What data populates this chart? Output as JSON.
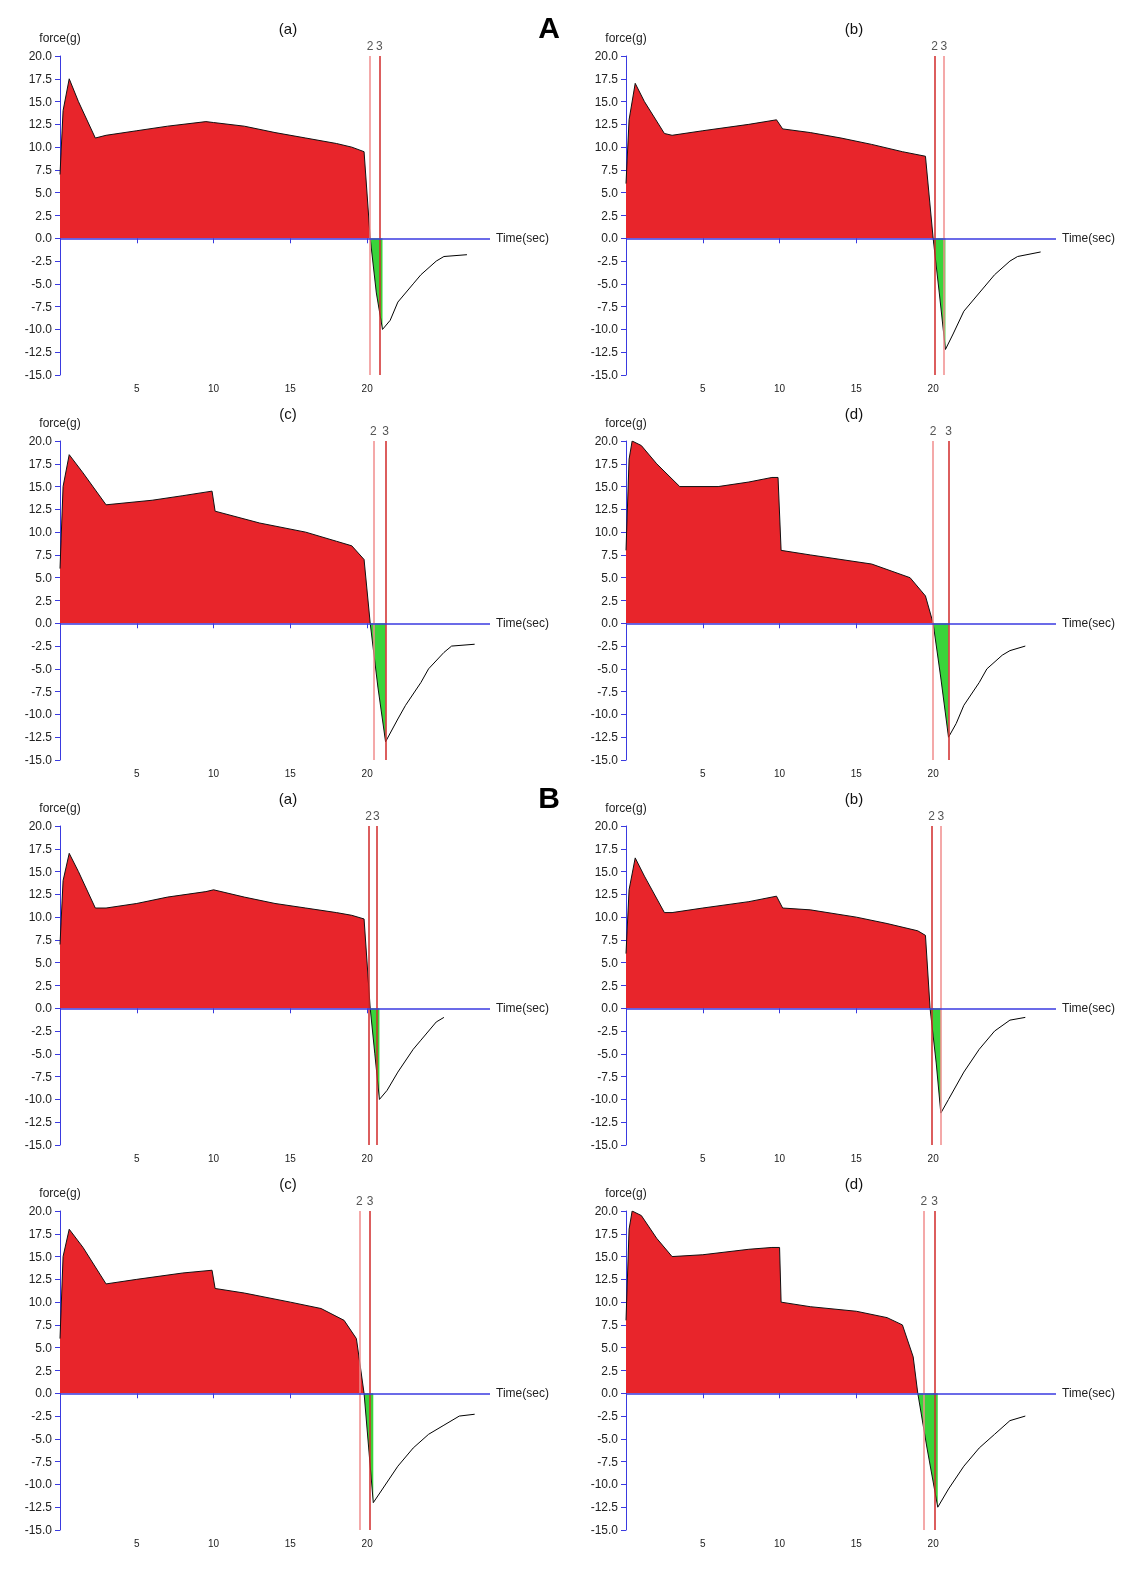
{
  "chart_data": [
    {
      "type": "area",
      "title": "(a)",
      "ylabel": "force(g)",
      "xlabel": "Time(sec)",
      "annotations": [
        "A",
        {
          "text": "2",
          "x": 20.2,
          "y": 20
        },
        {
          "text": "3",
          "x": 20.8,
          "y": 20
        }
      ],
      "xlim": [
        0,
        28
      ],
      "xticks": [
        5,
        10,
        15,
        20
      ],
      "ylim": [
        -15,
        20
      ],
      "yticks": [
        {
          "value": 20,
          "label": "20.0"
        },
        17.5,
        {
          "value": 15,
          "label": "15.0"
        },
        12.5,
        {
          "value": 10,
          "label": "10.0"
        },
        7.5,
        {
          "value": 5,
          "label": "5.0"
        },
        2.5,
        {
          "value": 0,
          "label": "0.0"
        },
        -2.5,
        {
          "value": -5,
          "label": "-5.0"
        },
        -7.5,
        {
          "value": -10,
          "label": "-10.0"
        },
        -12.5,
        {
          "value": -15,
          "label": "-15.0"
        }
      ],
      "ref_lines": [
        {
          "axis": "x",
          "value": 20.2,
          "color": "#f08c8c"
        },
        {
          "axis": "x",
          "value": 20.8,
          "color": "#d02828"
        },
        {
          "axis": "y",
          "value": 0,
          "color": "#3a3ae0"
        }
      ],
      "series": [
        {
          "type": "area",
          "color": "#e8252b",
          "x": [
            0,
            0.2,
            0.6,
            1.2,
            2.3,
            3,
            5,
            7,
            9.5,
            10,
            12,
            14,
            16,
            18,
            19,
            19.8,
            20.2
          ],
          "values": [
            7,
            14,
            17.5,
            15,
            11,
            11.3,
            11.8,
            12.3,
            12.8,
            12.7,
            12.3,
            11.6,
            11,
            10.4,
            10,
            9.5,
            0
          ]
        },
        {
          "type": "area",
          "color": "#39d43a",
          "x": [
            20.2,
            20.6,
            21
          ],
          "values": [
            0,
            -6,
            -10
          ]
        },
        {
          "type": "line",
          "color": "#000000",
          "x": [
            21,
            21.5,
            22,
            23,
            23.5,
            24.5,
            25,
            26.5
          ],
          "values": [
            -10,
            -9,
            -7,
            -5,
            -4,
            -2.5,
            -2,
            -1.8
          ]
        }
      ]
    },
    {
      "type": "area",
      "title": "(b)",
      "ylabel": "force(g)",
      "xlabel": "Time(sec)",
      "annotations": [
        {
          "text": "2",
          "x": 20.1,
          "y": 20
        },
        {
          "text": "3",
          "x": 20.7,
          "y": 20
        }
      ],
      "xlim": [
        0,
        28
      ],
      "xticks": [
        5,
        10,
        15,
        20
      ],
      "ylim": [
        -15,
        20
      ],
      "yticks": [
        {
          "value": 20,
          "label": "20.0"
        },
        17.5,
        {
          "value": 15,
          "label": "15.0"
        },
        12.5,
        {
          "value": 10,
          "label": "10.0"
        },
        7.5,
        {
          "value": 5,
          "label": "5.0"
        },
        2.5,
        {
          "value": 0,
          "label": "0.0"
        },
        -2.5,
        {
          "value": -5,
          "label": "-5.0"
        },
        -7.5,
        {
          "value": -10,
          "label": "-10.0"
        },
        -12.5,
        {
          "value": -15,
          "label": "-15.0"
        }
      ],
      "ref_lines": [
        {
          "axis": "x",
          "value": 20.1,
          "color": "#d02828"
        },
        {
          "axis": "x",
          "value": 20.7,
          "color": "#f08c8c"
        },
        {
          "axis": "y",
          "value": 0,
          "color": "#3a3ae0"
        }
      ],
      "series": [
        {
          "type": "area",
          "color": "#e8252b",
          "x": [
            0,
            0.2,
            0.6,
            1.2,
            2.5,
            3,
            5,
            8,
            9.8,
            10.2,
            12,
            14,
            16,
            18,
            19.5,
            20
          ],
          "values": [
            6,
            13,
            17,
            15,
            11.5,
            11.3,
            11.8,
            12.5,
            13,
            12,
            11.6,
            11,
            10.3,
            9.5,
            9,
            0
          ]
        },
        {
          "type": "area",
          "color": "#39d43a",
          "x": [
            20,
            20.4,
            20.8
          ],
          "values": [
            0,
            -6,
            -12.2
          ]
        },
        {
          "type": "line",
          "color": "#000000",
          "x": [
            20.8,
            21.3,
            22,
            23,
            24,
            25,
            25.5,
            27
          ],
          "values": [
            -12.2,
            -10.5,
            -8,
            -6,
            -4,
            -2.5,
            -2,
            -1.5
          ]
        }
      ]
    },
    {
      "type": "area",
      "title": "(c)",
      "ylabel": "force(g)",
      "xlabel": "Time(sec)",
      "annotations": [
        {
          "text": "2",
          "x": 20.4,
          "y": 20
        },
        {
          "text": "3",
          "x": 21.2,
          "y": 20
        }
      ],
      "xlim": [
        0,
        28
      ],
      "xticks": [
        5,
        10,
        15,
        20
      ],
      "ylim": [
        -15,
        20
      ],
      "yticks": [
        {
          "value": 20,
          "label": "20.0"
        },
        17.5,
        {
          "value": 15,
          "label": "15.0"
        },
        12.5,
        {
          "value": 10,
          "label": "10.0"
        },
        7.5,
        {
          "value": 5,
          "label": "5.0"
        },
        2.5,
        {
          "value": 0,
          "label": "0.0"
        },
        -2.5,
        {
          "value": -5,
          "label": "-5.0"
        },
        -7.5,
        {
          "value": -10,
          "label": "-10.0"
        },
        -12.5,
        {
          "value": -15,
          "label": "-15.0"
        }
      ],
      "ref_lines": [
        {
          "axis": "x",
          "value": 20.4,
          "color": "#f08c8c"
        },
        {
          "axis": "x",
          "value": 21.2,
          "color": "#d02828"
        },
        {
          "axis": "y",
          "value": 0,
          "color": "#3a3ae0"
        }
      ],
      "series": [
        {
          "type": "area",
          "color": "#e8252b",
          "x": [
            0,
            0.2,
            0.6,
            1.5,
            3,
            6,
            8,
            9.9,
            10.1,
            13,
            16,
            18,
            19,
            19.8,
            20.2
          ],
          "values": [
            6,
            15,
            18.5,
            16.5,
            13,
            13.5,
            14,
            14.5,
            12.3,
            11,
            10,
            9,
            8.5,
            7,
            0
          ]
        },
        {
          "type": "area",
          "color": "#39d43a",
          "x": [
            20.2,
            20.7,
            21.2
          ],
          "values": [
            0,
            -7,
            -13
          ]
        },
        {
          "type": "line",
          "color": "#000000",
          "x": [
            21.2,
            22,
            22.5,
            23.5,
            24,
            25,
            25.5,
            27
          ],
          "values": [
            -13,
            -10.5,
            -9,
            -6.5,
            -5,
            -3.2,
            -2.5,
            -2.3
          ]
        }
      ]
    },
    {
      "type": "area",
      "title": "(d)",
      "ylabel": "force(g)",
      "xlabel": "Time(sec)",
      "annotations": [
        {
          "text": "2",
          "x": 20,
          "y": 20
        },
        {
          "text": "3",
          "x": 21,
          "y": 20
        }
      ],
      "xlim": [
        0,
        28
      ],
      "xticks": [
        5,
        10,
        15,
        20
      ],
      "ylim": [
        -15,
        20
      ],
      "yticks": [
        {
          "value": 20,
          "label": "20.0"
        },
        17.5,
        {
          "value": 15,
          "label": "15.0"
        },
        12.5,
        {
          "value": 10,
          "label": "10.0"
        },
        7.5,
        {
          "value": 5,
          "label": "5.0"
        },
        2.5,
        {
          "value": 0,
          "label": "0.0"
        },
        -2.5,
        {
          "value": -5,
          "label": "-5.0"
        },
        -7.5,
        {
          "value": -10,
          "label": "-10.0"
        },
        -12.5,
        {
          "value": -15,
          "label": "-15.0"
        }
      ],
      "ref_lines": [
        {
          "axis": "x",
          "value": 20,
          "color": "#f08c8c"
        },
        {
          "axis": "x",
          "value": 21,
          "color": "#d02828"
        },
        {
          "axis": "y",
          "value": 0,
          "color": "#3a3ae0"
        }
      ],
      "series": [
        {
          "type": "area",
          "color": "#e8252b",
          "x": [
            0,
            0.2,
            0.4,
            1,
            2,
            3.5,
            6,
            8,
            9.5,
            9.9,
            10.1,
            12,
            14,
            16,
            18.5,
            19.5,
            20
          ],
          "values": [
            8,
            18,
            20,
            19.5,
            17.5,
            15,
            15,
            15.5,
            16,
            16,
            8,
            7.5,
            7,
            6.5,
            5,
            3,
            0
          ]
        },
        {
          "type": "area",
          "color": "#39d43a",
          "x": [
            20,
            20.5,
            21
          ],
          "values": [
            0,
            -6,
            -12.5
          ]
        },
        {
          "type": "line",
          "color": "#000000",
          "x": [
            21,
            21.5,
            22,
            23,
            23.5,
            24.5,
            25,
            26
          ],
          "values": [
            -12.5,
            -11,
            -9,
            -6.5,
            -5,
            -3.5,
            -3,
            -2.5
          ]
        }
      ]
    },
    {
      "type": "area",
      "title": "(a)",
      "ylabel": "force(g)",
      "xlabel": "Time(sec)",
      "annotations": [
        "B",
        {
          "text": "2",
          "x": 20.1,
          "y": 20
        },
        {
          "text": "3",
          "x": 20.6,
          "y": 20
        }
      ],
      "xlim": [
        0,
        28
      ],
      "xticks": [
        5,
        10,
        15,
        20
      ],
      "ylim": [
        -15,
        20
      ],
      "yticks": [
        {
          "value": 20,
          "label": "20.0"
        },
        17.5,
        {
          "value": 15,
          "label": "15.0"
        },
        12.5,
        {
          "value": 10,
          "label": "10.0"
        },
        7.5,
        {
          "value": 5,
          "label": "5.0"
        },
        2.5,
        {
          "value": 0,
          "label": "0.0"
        },
        -2.5,
        {
          "value": -5,
          "label": "-5.0"
        },
        -7.5,
        {
          "value": -10,
          "label": "-10.0"
        },
        -12.5,
        {
          "value": -15,
          "label": "-15.0"
        }
      ],
      "ref_lines": [
        {
          "axis": "x",
          "value": 20.1,
          "color": "#d02828"
        },
        {
          "axis": "x",
          "value": 20.6,
          "color": "#d02828"
        },
        {
          "axis": "y",
          "value": 0,
          "color": "#3a3ae0"
        }
      ],
      "series": [
        {
          "type": "area",
          "color": "#e8252b",
          "x": [
            0,
            0.2,
            0.6,
            1.2,
            2.3,
            3,
            5,
            7,
            9.5,
            10,
            12,
            14,
            16,
            18,
            19,
            19.8,
            20.2
          ],
          "values": [
            7,
            14,
            17,
            15,
            11,
            11,
            11.5,
            12.2,
            12.8,
            13,
            12.2,
            11.5,
            11,
            10.5,
            10.2,
            9.8,
            0
          ]
        },
        {
          "type": "area",
          "color": "#39d43a",
          "x": [
            20.2,
            20.5,
            20.8
          ],
          "values": [
            0,
            -5,
            -10
          ]
        },
        {
          "type": "line",
          "color": "#000000",
          "x": [
            20.8,
            21.3,
            22,
            23,
            23.5,
            24.5,
            25
          ],
          "values": [
            -10,
            -9,
            -7,
            -4.5,
            -3.5,
            -1.5,
            -1
          ]
        }
      ]
    },
    {
      "type": "area",
      "title": "(b)",
      "ylabel": "force(g)",
      "xlabel": "Time(sec)",
      "annotations": [
        {
          "text": "2",
          "x": 19.9,
          "y": 20
        },
        {
          "text": "3",
          "x": 20.5,
          "y": 20
        }
      ],
      "xlim": [
        0,
        28
      ],
      "xticks": [
        5,
        10,
        15,
        20
      ],
      "ylim": [
        -15,
        20
      ],
      "yticks": [
        {
          "value": 20,
          "label": "20.0"
        },
        17.5,
        {
          "value": 15,
          "label": "15.0"
        },
        12.5,
        {
          "value": 10,
          "label": "10.0"
        },
        7.5,
        {
          "value": 5,
          "label": "5.0"
        },
        2.5,
        {
          "value": 0,
          "label": "0.0"
        },
        -2.5,
        {
          "value": -5,
          "label": "-5.0"
        },
        -7.5,
        {
          "value": -10,
          "label": "-10.0"
        },
        -12.5,
        {
          "value": -15,
          "label": "-15.0"
        }
      ],
      "ref_lines": [
        {
          "axis": "x",
          "value": 19.9,
          "color": "#d02828"
        },
        {
          "axis": "x",
          "value": 20.5,
          "color": "#f08c8c"
        },
        {
          "axis": "y",
          "value": 0,
          "color": "#3a3ae0"
        }
      ],
      "series": [
        {
          "type": "area",
          "color": "#e8252b",
          "x": [
            0,
            0.2,
            0.6,
            1.2,
            2.5,
            3,
            5,
            8,
            9.8,
            10.2,
            12,
            15,
            17,
            19,
            19.5,
            19.8
          ],
          "values": [
            6,
            13,
            16.5,
            14.5,
            10.5,
            10.5,
            11,
            11.7,
            12.3,
            11,
            10.8,
            10,
            9.3,
            8.5,
            8,
            0
          ]
        },
        {
          "type": "area",
          "color": "#39d43a",
          "x": [
            19.8,
            20.2,
            20.5
          ],
          "values": [
            0,
            -6,
            -11.5
          ]
        },
        {
          "type": "line",
          "color": "#000000",
          "x": [
            20.5,
            21,
            22,
            23,
            24,
            25,
            26
          ],
          "values": [
            -11.5,
            -10,
            -7,
            -4.5,
            -2.5,
            -1.3,
            -1
          ]
        }
      ]
    },
    {
      "type": "area",
      "title": "(c)",
      "ylabel": "force(g)",
      "xlabel": "Time(sec)",
      "annotations": [
        {
          "text": "2",
          "x": 19.5,
          "y": 20
        },
        {
          "text": "3",
          "x": 20.2,
          "y": 20
        }
      ],
      "xlim": [
        0,
        28
      ],
      "xticks": [
        5,
        10,
        15,
        20
      ],
      "ylim": [
        -15,
        20
      ],
      "yticks": [
        {
          "value": 20,
          "label": "20.0"
        },
        17.5,
        {
          "value": 15,
          "label": "15.0"
        },
        12.5,
        {
          "value": 10,
          "label": "10.0"
        },
        7.5,
        {
          "value": 5,
          "label": "5.0"
        },
        2.5,
        {
          "value": 0,
          "label": "0.0"
        },
        -2.5,
        {
          "value": -5,
          "label": "-5.0"
        },
        -7.5,
        {
          "value": -10,
          "label": "-10.0"
        },
        -12.5,
        {
          "value": -15,
          "label": "-15.0"
        }
      ],
      "ref_lines": [
        {
          "axis": "x",
          "value": 19.5,
          "color": "#f08c8c"
        },
        {
          "axis": "x",
          "value": 20.2,
          "color": "#d02828"
        },
        {
          "axis": "y",
          "value": 0,
          "color": "#3a3ae0"
        }
      ],
      "series": [
        {
          "type": "area",
          "color": "#e8252b",
          "x": [
            0,
            0.2,
            0.6,
            1.5,
            3,
            5,
            8,
            9.9,
            10.1,
            12,
            15,
            17,
            18.5,
            19.3,
            19.8
          ],
          "values": [
            6,
            15,
            18,
            16,
            12,
            12.5,
            13.2,
            13.5,
            11.5,
            11,
            10,
            9.3,
            8,
            6,
            0
          ]
        },
        {
          "type": "area",
          "color": "#39d43a",
          "x": [
            19.8,
            20.1,
            20.4
          ],
          "values": [
            0,
            -6,
            -12
          ]
        },
        {
          "type": "line",
          "color": "#000000",
          "x": [
            20.4,
            21,
            22,
            23,
            24,
            25,
            26,
            27
          ],
          "values": [
            -12,
            -10.5,
            -8,
            -6,
            -4.5,
            -3.5,
            -2.5,
            -2.3
          ]
        }
      ]
    },
    {
      "type": "area",
      "title": "(d)",
      "ylabel": "force(g)",
      "xlabel": "Time(sec)",
      "annotations": [
        {
          "text": "2",
          "x": 19.4,
          "y": 20
        },
        {
          "text": "3",
          "x": 20.1,
          "y": 20
        }
      ],
      "xlim": [
        0,
        28
      ],
      "xticks": [
        5,
        10,
        15,
        20
      ],
      "ylim": [
        -15,
        20
      ],
      "yticks": [
        {
          "value": 20,
          "label": "20.0"
        },
        17.5,
        {
          "value": 15,
          "label": "15.0"
        },
        12.5,
        {
          "value": 10,
          "label": "10.0"
        },
        7.5,
        {
          "value": 5,
          "label": "5.0"
        },
        2.5,
        {
          "value": 0,
          "label": "0.0"
        },
        -2.5,
        {
          "value": -5,
          "label": "-5.0"
        },
        -7.5,
        {
          "value": -10,
          "label": "-10.0"
        },
        -12.5,
        {
          "value": -15,
          "label": "-15.0"
        }
      ],
      "ref_lines": [
        {
          "axis": "x",
          "value": 19.4,
          "color": "#f08c8c"
        },
        {
          "axis": "x",
          "value": 20.1,
          "color": "#d02828"
        },
        {
          "axis": "y",
          "value": 0,
          "color": "#3a3ae0"
        }
      ],
      "series": [
        {
          "type": "area",
          "color": "#e8252b",
          "x": [
            0,
            0.2,
            0.4,
            1,
            2,
            3,
            5,
            8,
            9.5,
            10,
            10.1,
            12,
            15,
            17,
            18,
            18.7,
            19
          ],
          "values": [
            8,
            18,
            20,
            19.5,
            17,
            15,
            15.2,
            15.8,
            16,
            16,
            10,
            9.5,
            9,
            8.3,
            7.5,
            4,
            0
          ]
        },
        {
          "type": "area",
          "color": "#39d43a",
          "x": [
            19,
            19.6,
            20.3
          ],
          "values": [
            0,
            -6,
            -12.5
          ]
        },
        {
          "type": "line",
          "color": "#000000",
          "x": [
            20.3,
            21,
            22,
            23,
            24,
            25,
            26
          ],
          "values": [
            -12.5,
            -10.5,
            -8,
            -6,
            -4.5,
            -3,
            -2.5
          ]
        }
      ]
    }
  ]
}
